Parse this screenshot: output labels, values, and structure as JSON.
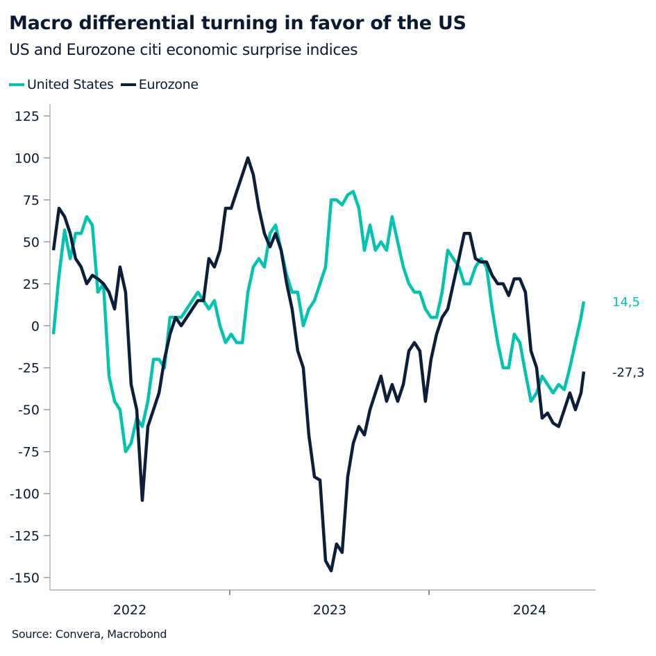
{
  "title": "Macro differential turning in favor of the US",
  "subtitle": "US and Eurozone citi economic surprise indices",
  "source": "Source: Convera, Macrobond",
  "chart_data": {
    "type": "line",
    "title": "Macro differential turning in favor of the US",
    "subtitle": "US and Eurozone citi economic surprise indices",
    "xlabel": "",
    "ylabel": "",
    "ylim": [
      -150,
      125
    ],
    "yticks": [
      125,
      100,
      75,
      50,
      25,
      0,
      -25,
      -50,
      -75,
      -100,
      -125,
      -150
    ],
    "xticks": [
      "2022",
      "2023",
      "2024"
    ],
    "grid": false,
    "legend": "top-left",
    "x": [
      2022.115,
      2022.143,
      2022.171,
      2022.199,
      2022.226,
      2022.254,
      2022.282,
      2022.31,
      2022.338,
      2022.366,
      2022.394,
      2022.422,
      2022.449,
      2022.477,
      2022.505,
      2022.533,
      2022.561,
      2022.589,
      2022.617,
      2022.645,
      2022.672,
      2022.7,
      2022.728,
      2022.756,
      2022.784,
      2022.812,
      2022.84,
      2022.868,
      2022.895,
      2022.923,
      2022.951,
      2022.979,
      2023.007,
      2023.035,
      2023.063,
      2023.091,
      2023.118,
      2023.146,
      2023.174,
      2023.202,
      2023.23,
      2023.258,
      2023.286,
      2023.313,
      2023.341,
      2023.369,
      2023.397,
      2023.425,
      2023.453,
      2023.481,
      2023.509,
      2023.536,
      2023.564,
      2023.592,
      2023.62,
      2023.648,
      2023.676,
      2023.704,
      2023.731,
      2023.759,
      2023.787,
      2023.815,
      2023.843,
      2023.871,
      2023.899,
      2023.927,
      2023.954,
      2023.982,
      2024.01,
      2024.038,
      2024.066,
      2024.094,
      2024.122,
      2024.15,
      2024.177,
      2024.205,
      2024.233,
      2024.261,
      2024.289,
      2024.317,
      2024.345,
      2024.372,
      2024.4,
      2024.428,
      2024.456,
      2024.484,
      2024.512,
      2024.54,
      2024.568,
      2024.595,
      2024.623,
      2024.651,
      2024.679,
      2024.707,
      2024.735,
      2024.763,
      2024.777
    ],
    "series": [
      {
        "name": "United States",
        "color": "#00c4b0",
        "last_label": "14,5",
        "values": [
          -5,
          30,
          57,
          40,
          55,
          55,
          65,
          60,
          20,
          25,
          -30,
          -45,
          -50,
          -75,
          -70,
          -55,
          -60,
          -45,
          -20,
          -20,
          -25,
          5,
          5,
          5,
          10,
          15,
          20,
          15,
          10,
          15,
          0,
          -10,
          -5,
          -10,
          -10,
          20,
          35,
          40,
          35,
          55,
          60,
          45,
          30,
          20,
          20,
          0,
          10,
          15,
          25,
          35,
          75,
          75,
          72,
          78,
          80,
          70,
          45,
          60,
          45,
          50,
          45,
          65,
          50,
          35,
          25,
          20,
          20,
          10,
          5,
          5,
          20,
          45,
          40,
          35,
          25,
          25,
          35,
          40,
          35,
          10,
          -10,
          -25,
          -25,
          -5,
          -10,
          -28,
          -45,
          -40,
          -30,
          -35,
          -40,
          -35,
          -38,
          -25,
          -10,
          5,
          14.5
        ]
      },
      {
        "name": "Eurozone",
        "color": "#0b1f3a",
        "last_label": "-27,3",
        "values": [
          45,
          70,
          65,
          55,
          40,
          35,
          25,
          30,
          28,
          25,
          20,
          10,
          35,
          20,
          -35,
          -50,
          -104,
          -60,
          -50,
          -40,
          -20,
          -5,
          5,
          0,
          5,
          10,
          15,
          15,
          40,
          35,
          45,
          70,
          70,
          80,
          90,
          100,
          90,
          70,
          55,
          47,
          55,
          45,
          25,
          10,
          -15,
          -25,
          -65,
          -90,
          -92,
          -140,
          -146,
          -130,
          -135,
          -90,
          -70,
          -60,
          -65,
          -50,
          -40,
          -30,
          -45,
          -35,
          -45,
          -35,
          -15,
          -10,
          -15,
          -45,
          -20,
          -5,
          5,
          10,
          25,
          40,
          55,
          55,
          40,
          38,
          38,
          30,
          25,
          25,
          18,
          28,
          28,
          20,
          -15,
          -25,
          -55,
          -52,
          -58,
          -60,
          -50,
          -40,
          -50,
          -40,
          -27.3
        ]
      }
    ]
  }
}
